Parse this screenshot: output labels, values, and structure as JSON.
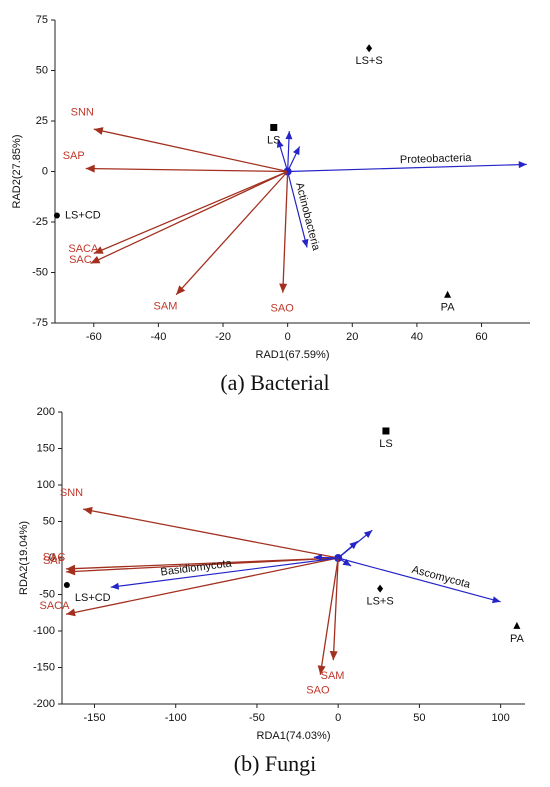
{
  "chart_data": [
    {
      "type": "biplot",
      "caption": "(a) Bacterial",
      "xlabel": "RAD1(67.59%)",
      "ylabel": "RAD2(27.85%)",
      "xlim": [
        -72,
        75
      ],
      "xticks": [
        -60,
        -40,
        -20,
        0,
        20,
        40,
        60
      ],
      "ylim": [
        -75,
        75
      ],
      "yticks": [
        -75,
        -50,
        -25,
        0,
        25,
        50,
        75
      ],
      "env_color": "#a3301f",
      "env_label_color": "#c0392b",
      "species_color": "#2424c8",
      "points": [
        {
          "label": "LS+S",
          "x": 25.2,
          "y": 61,
          "marker": "diamond"
        },
        {
          "label": "LS",
          "x": -4.3,
          "y": 21.8,
          "marker": "square"
        },
        {
          "label": "LS+CD",
          "x": -71.4,
          "y": -21.8,
          "marker": "circle"
        },
        {
          "label": "PA",
          "x": 49.5,
          "y": -61,
          "marker": "triangle"
        }
      ],
      "env_arrows": {
        "labels": [
          "SNN",
          "SAP",
          "SACA",
          "SAC",
          "SAM",
          "SAO"
        ],
        "x": [
          -60,
          -62.5,
          -60,
          -61,
          -34.5,
          -1.5
        ],
        "y": [
          21,
          1.5,
          -40.6,
          -45.5,
          -61,
          -60
        ]
      },
      "species_arrows": {
        "labels": [
          "Proteobacteria",
          "Actinobacteria",
          null,
          null,
          null
        ],
        "x": [
          74,
          6,
          -3,
          0.5,
          3.7
        ],
        "y": [
          3.5,
          -37.6,
          16,
          20,
          12.4
        ]
      }
    },
    {
      "type": "biplot",
      "caption": "(b) Fungi",
      "xlabel": "RDA1(74.03%)",
      "ylabel": "RDA2(19.04%)",
      "xlim": [
        -170,
        115
      ],
      "xticks": [
        -150,
        -100,
        -50,
        0,
        50,
        100
      ],
      "ylim": [
        -200,
        200
      ],
      "yticks": [
        -200,
        -150,
        -100,
        -50,
        0,
        50,
        100,
        150,
        200
      ],
      "env_color": "#a3301f",
      "env_label_color": "#c0392b",
      "species_color": "#2424c8",
      "points": [
        {
          "label": "LS",
          "x": 29.4,
          "y": 174,
          "marker": "square"
        },
        {
          "label": "LS+S",
          "x": 25.8,
          "y": -42,
          "marker": "diamond"
        },
        {
          "label": "PA",
          "x": 110,
          "y": -93,
          "marker": "triangle"
        },
        {
          "label": "LS+CD",
          "x": -167,
          "y": -37,
          "marker": "circle"
        }
      ],
      "env_arrows": {
        "labels": [
          "SNN",
          "SAC",
          "SAP",
          "SACA",
          "SAO",
          "SAM"
        ],
        "x": [
          -157,
          -167.5,
          -167.5,
          -167.5,
          -11,
          -3
        ],
        "y": [
          67,
          -15,
          -19,
          -77,
          -160,
          -140
        ]
      },
      "species_arrows": {
        "labels": [
          "Ascomycota",
          "Basidiomycota",
          null,
          null,
          null,
          null
        ],
        "x": [
          100,
          -140,
          21,
          12,
          8,
          -15
        ],
        "y": [
          -60,
          -40,
          38,
          23,
          -11,
          1
        ]
      }
    }
  ]
}
